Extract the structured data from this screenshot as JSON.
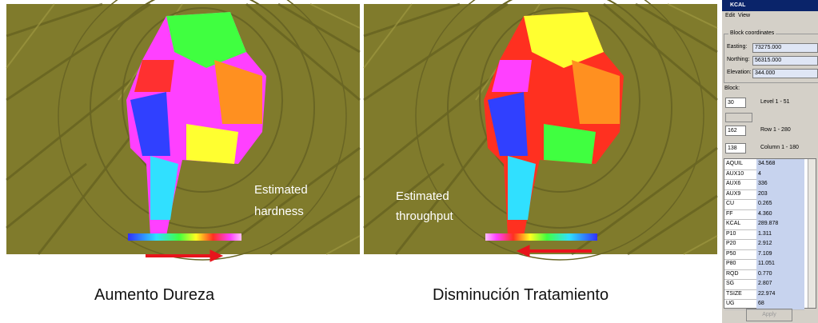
{
  "left_image": {
    "overlay_lines": [
      "Estimated",
      "hardness"
    ],
    "caption": "Aumento Dureza"
  },
  "right_image": {
    "overlay_lines": [
      "Estimated",
      "throughput"
    ],
    "caption": "Disminución Tratamiento"
  },
  "panel": {
    "title": "KCAL",
    "menu": [
      "Edit",
      "View"
    ],
    "group_title": "Block coordinates",
    "coordinates": [
      [
        "Easting:",
        "73275.000"
      ],
      [
        "Northing:",
        "56315.000"
      ],
      [
        "Elevation:",
        "344.000"
      ]
    ],
    "block_label": "Block:",
    "spinners": [
      [
        "30",
        "Level 1 - 51"
      ],
      [
        "162",
        "Row 1 - 280"
      ],
      [
        "138",
        "Column 1 - 180"
      ]
    ],
    "table": [
      [
        "AQUIL",
        "34.568"
      ],
      [
        "AUX10",
        "4"
      ],
      [
        "AUX6",
        "336"
      ],
      [
        "AUX9",
        "203"
      ],
      [
        "CU",
        "0.265"
      ],
      [
        "FF",
        "4.360"
      ],
      [
        "KCAL",
        "289.878"
      ],
      [
        "P10",
        "1.311"
      ],
      [
        "P20",
        "2.912"
      ],
      [
        "P50",
        "7.109"
      ],
      [
        "P80",
        "11.051"
      ],
      [
        "RQD",
        "0.770"
      ],
      [
        "SG",
        "2.807"
      ],
      [
        "TSIZE",
        "22.974"
      ],
      [
        "UG",
        "68"
      ]
    ],
    "button": "Apply"
  }
}
